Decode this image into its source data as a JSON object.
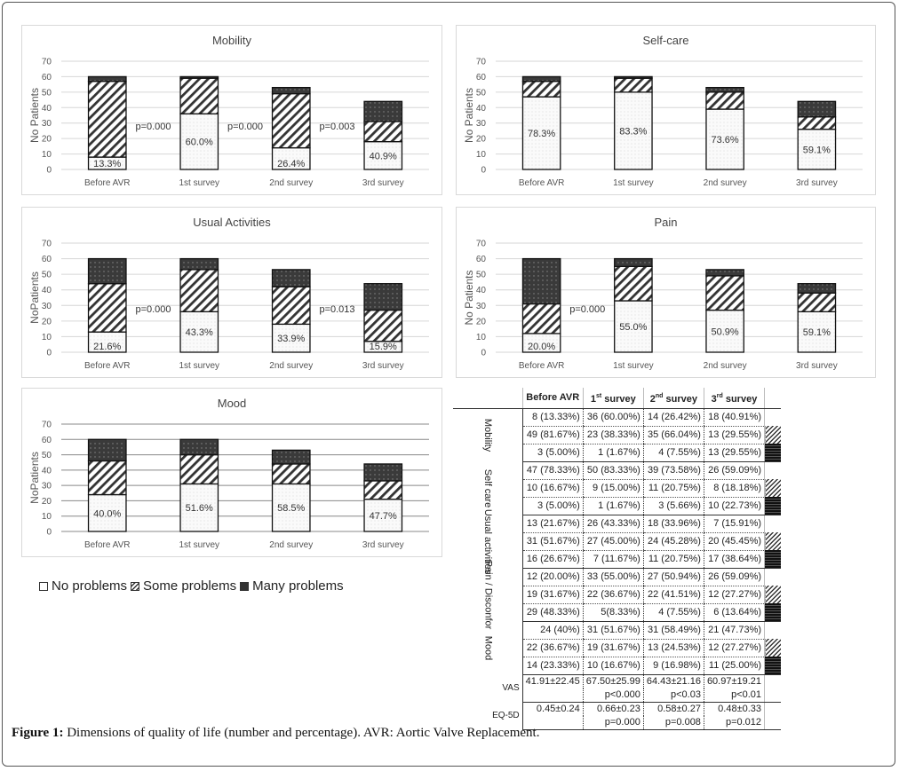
{
  "figure": {
    "caption_label": "Figure 1:",
    "caption_text": " Dimensions of quality of life (number and percentage). AVR: Aortic Valve Replacement."
  },
  "legend": {
    "items": [
      {
        "label": "No problems",
        "key": "none"
      },
      {
        "label": "Some problems",
        "key": "some"
      },
      {
        "label": "Many problems",
        "key": "many"
      }
    ]
  },
  "chart_data": [
    {
      "type": "bar",
      "stacked": true,
      "title": "Mobility",
      "ylabel": "No Patients",
      "xlabel": "",
      "ylim": [
        0,
        70
      ],
      "yticks": [
        0,
        10,
        20,
        30,
        40,
        50,
        60,
        70
      ],
      "grid": true,
      "categories": [
        "Before AVR",
        "1st survey",
        "2nd survey",
        "3rd survey"
      ],
      "series": [
        {
          "name": "No problems",
          "values": [
            8,
            36,
            14,
            18
          ]
        },
        {
          "name": "Some problems",
          "values": [
            49,
            23,
            35,
            13
          ]
        },
        {
          "name": "Many problems",
          "values": [
            3,
            1,
            4,
            13
          ]
        }
      ],
      "bar_labels": [
        "13.3%",
        "60.0%",
        "26.4%",
        "40.9%"
      ],
      "annotations": [
        {
          "text": "p=0.000",
          "between": [
            0,
            1
          ]
        },
        {
          "text": "p=0.000",
          "between": [
            1,
            2
          ]
        },
        {
          "text": "p=0.003",
          "between": [
            2,
            3
          ]
        }
      ]
    },
    {
      "type": "bar",
      "stacked": true,
      "title": "Self-care",
      "ylabel": "No Patients",
      "xlabel": "",
      "ylim": [
        0,
        70
      ],
      "yticks": [
        0,
        10,
        20,
        30,
        40,
        50,
        60,
        70
      ],
      "grid": true,
      "categories": [
        "Before AVR",
        "1st survey",
        "2nd survey",
        "3rd survey"
      ],
      "series": [
        {
          "name": "No problems",
          "values": [
            47,
            50,
            39,
            26
          ]
        },
        {
          "name": "Some problems",
          "values": [
            10,
            9,
            11,
            8
          ]
        },
        {
          "name": "Many problems",
          "values": [
            3,
            1,
            3,
            10
          ]
        }
      ],
      "bar_labels": [
        "78.3%",
        "83.3%",
        "73.6%",
        "59.1%"
      ],
      "annotations": []
    },
    {
      "type": "bar",
      "stacked": true,
      "title": "Usual Activities",
      "ylabel": "NoPatients",
      "xlabel": "",
      "ylim": [
        0,
        70
      ],
      "yticks": [
        0,
        10,
        20,
        30,
        40,
        50,
        60,
        70
      ],
      "grid": true,
      "categories": [
        "Before AVR",
        "1st survey",
        "2nd survey",
        "3rd survey"
      ],
      "series": [
        {
          "name": "No problems",
          "values": [
            13,
            26,
            18,
            7
          ]
        },
        {
          "name": "Some problems",
          "values": [
            31,
            27,
            24,
            20
          ]
        },
        {
          "name": "Many problems",
          "values": [
            16,
            7,
            11,
            17
          ]
        }
      ],
      "bar_labels": [
        "21.6%",
        "43.3%",
        "33.9%",
        "15.9%"
      ],
      "annotations": [
        {
          "text": "p=0.000",
          "between": [
            0,
            1
          ]
        },
        {
          "text": "p=0.013",
          "between": [
            2,
            3
          ]
        }
      ]
    },
    {
      "type": "bar",
      "stacked": true,
      "title": "Pain",
      "ylabel": "No Patients",
      "xlabel": "",
      "ylim": [
        0,
        70
      ],
      "yticks": [
        0,
        10,
        20,
        30,
        40,
        50,
        60,
        70
      ],
      "grid": true,
      "categories": [
        "Before AVR",
        "1st survey",
        "2nd survey",
        "3rd survey"
      ],
      "series": [
        {
          "name": "No problems",
          "values": [
            12,
            33,
            27,
            26
          ]
        },
        {
          "name": "Some problems",
          "values": [
            19,
            22,
            22,
            12
          ]
        },
        {
          "name": "Many problems",
          "values": [
            29,
            5,
            4,
            6
          ]
        }
      ],
      "bar_labels": [
        "20.0%",
        "55.0%",
        "50.9%",
        "59.1%"
      ],
      "annotations": [
        {
          "text": "p=0.000",
          "between": [
            0,
            1
          ]
        }
      ]
    },
    {
      "type": "bar",
      "stacked": true,
      "title": "Mood",
      "ylabel": "NoPatients",
      "xlabel": "",
      "ylim": [
        0,
        70
      ],
      "yticks": [
        0,
        10,
        20,
        30,
        40,
        50,
        60,
        70
      ],
      "grid": true,
      "categories": [
        "Before AVR",
        "1st survey",
        "2nd survey",
        "3rd survey"
      ],
      "series": [
        {
          "name": "No problems",
          "values": [
            24,
            31,
            31,
            21
          ]
        },
        {
          "name": "Some problems",
          "values": [
            22,
            19,
            13,
            12
          ]
        },
        {
          "name": "Many problems",
          "values": [
            14,
            10,
            9,
            11
          ]
        }
      ],
      "bar_labels": [
        "40.0%",
        "51.6%",
        "58.5%",
        "47.7%"
      ],
      "annotations": []
    },
    {
      "type": "table",
      "columns": [
        {
          "base": "Before AVR",
          "sup": ""
        },
        {
          "base": "1",
          "sup": "st",
          "rest": " survey"
        },
        {
          "base": "2",
          "sup": "nd",
          "rest": " survey"
        },
        {
          "base": "3",
          "sup": "rd",
          "rest": " survey"
        }
      ],
      "groups": [
        {
          "label": "Mobility",
          "rows": [
            [
              "8 (13.33%)",
              "36 (60.00%)",
              "14 (26.42%)",
              "18 (40.91%)"
            ],
            [
              "49 (81.67%)",
              "23 (38.33%)",
              "35 (66.04%)",
              "13 (29.55%)"
            ],
            [
              "3 (5.00%)",
              "1 (1.67%)",
              "4 (7.55%)",
              "13 (29.55%)"
            ]
          ]
        },
        {
          "label": "Self care",
          "rows": [
            [
              "47 (78.33%)",
              "50 (83.33%)",
              "39 (73.58%)",
              "26 (59.09%)"
            ],
            [
              "10 (16.67%)",
              "9 (15.00%)",
              "11 (20.75%)",
              "8 (18.18%)"
            ],
            [
              "3 (5.00%)",
              "1 (1.67%)",
              "3 (5.66%)",
              "10 (22.73%)"
            ]
          ]
        },
        {
          "label": "Usual activities",
          "rows": [
            [
              "13 (21.67%)",
              "26 (43.33%)",
              "18 (33.96%)",
              "7 (15.91%)"
            ],
            [
              "31 (51.67%)",
              "27 (45.00%)",
              "24 (45.28%)",
              "20 (45.45%)"
            ],
            [
              "16 (26.67%)",
              "7 (11.67%)",
              "11 (20.75%)",
              "17 (38.64%)"
            ]
          ]
        },
        {
          "label": "Pain / Disconfor",
          "rows": [
            [
              "12 (20.00%)",
              "33 (55.00%)",
              "27 (50.94%)",
              "26 (59.09%)"
            ],
            [
              "19 (31.67%)",
              "22 (36.67%)",
              "22 (41.51%)",
              "12 (27.27%)"
            ],
            [
              "29 (48.33%)",
              "5(8.33%)",
              "4 (7.55%)",
              "6 (13.64%)"
            ]
          ]
        },
        {
          "label": "Mood",
          "rows": [
            [
              "24 (40%)",
              "31 (51.67%)",
              "31 (58.49%)",
              "21 (47.73%)"
            ],
            [
              "22 (36.67%)",
              "19 (31.67%)",
              "13 (24.53%)",
              "12 (27.27%)"
            ],
            [
              "14 (23.33%)",
              "10 (16.67%)",
              "9 (16.98%)",
              "11 (25.00%)"
            ]
          ]
        }
      ],
      "metrics": [
        {
          "label": "VAS",
          "values": [
            "41.91±22.45",
            "67.50±25.99",
            "64.43±21.16",
            "60.97±19.21"
          ],
          "pvalues": [
            "",
            "p<0.000",
            "p<0.03",
            "p<0.01"
          ]
        },
        {
          "label": "EQ-5D",
          "values": [
            "0.45±0.24",
            "0.66±0.23",
            "0.58±0.27",
            "0.48±0.33"
          ],
          "pvalues": [
            "",
            "p=0.000",
            "p=0.008",
            "p=0.012"
          ]
        }
      ]
    }
  ]
}
